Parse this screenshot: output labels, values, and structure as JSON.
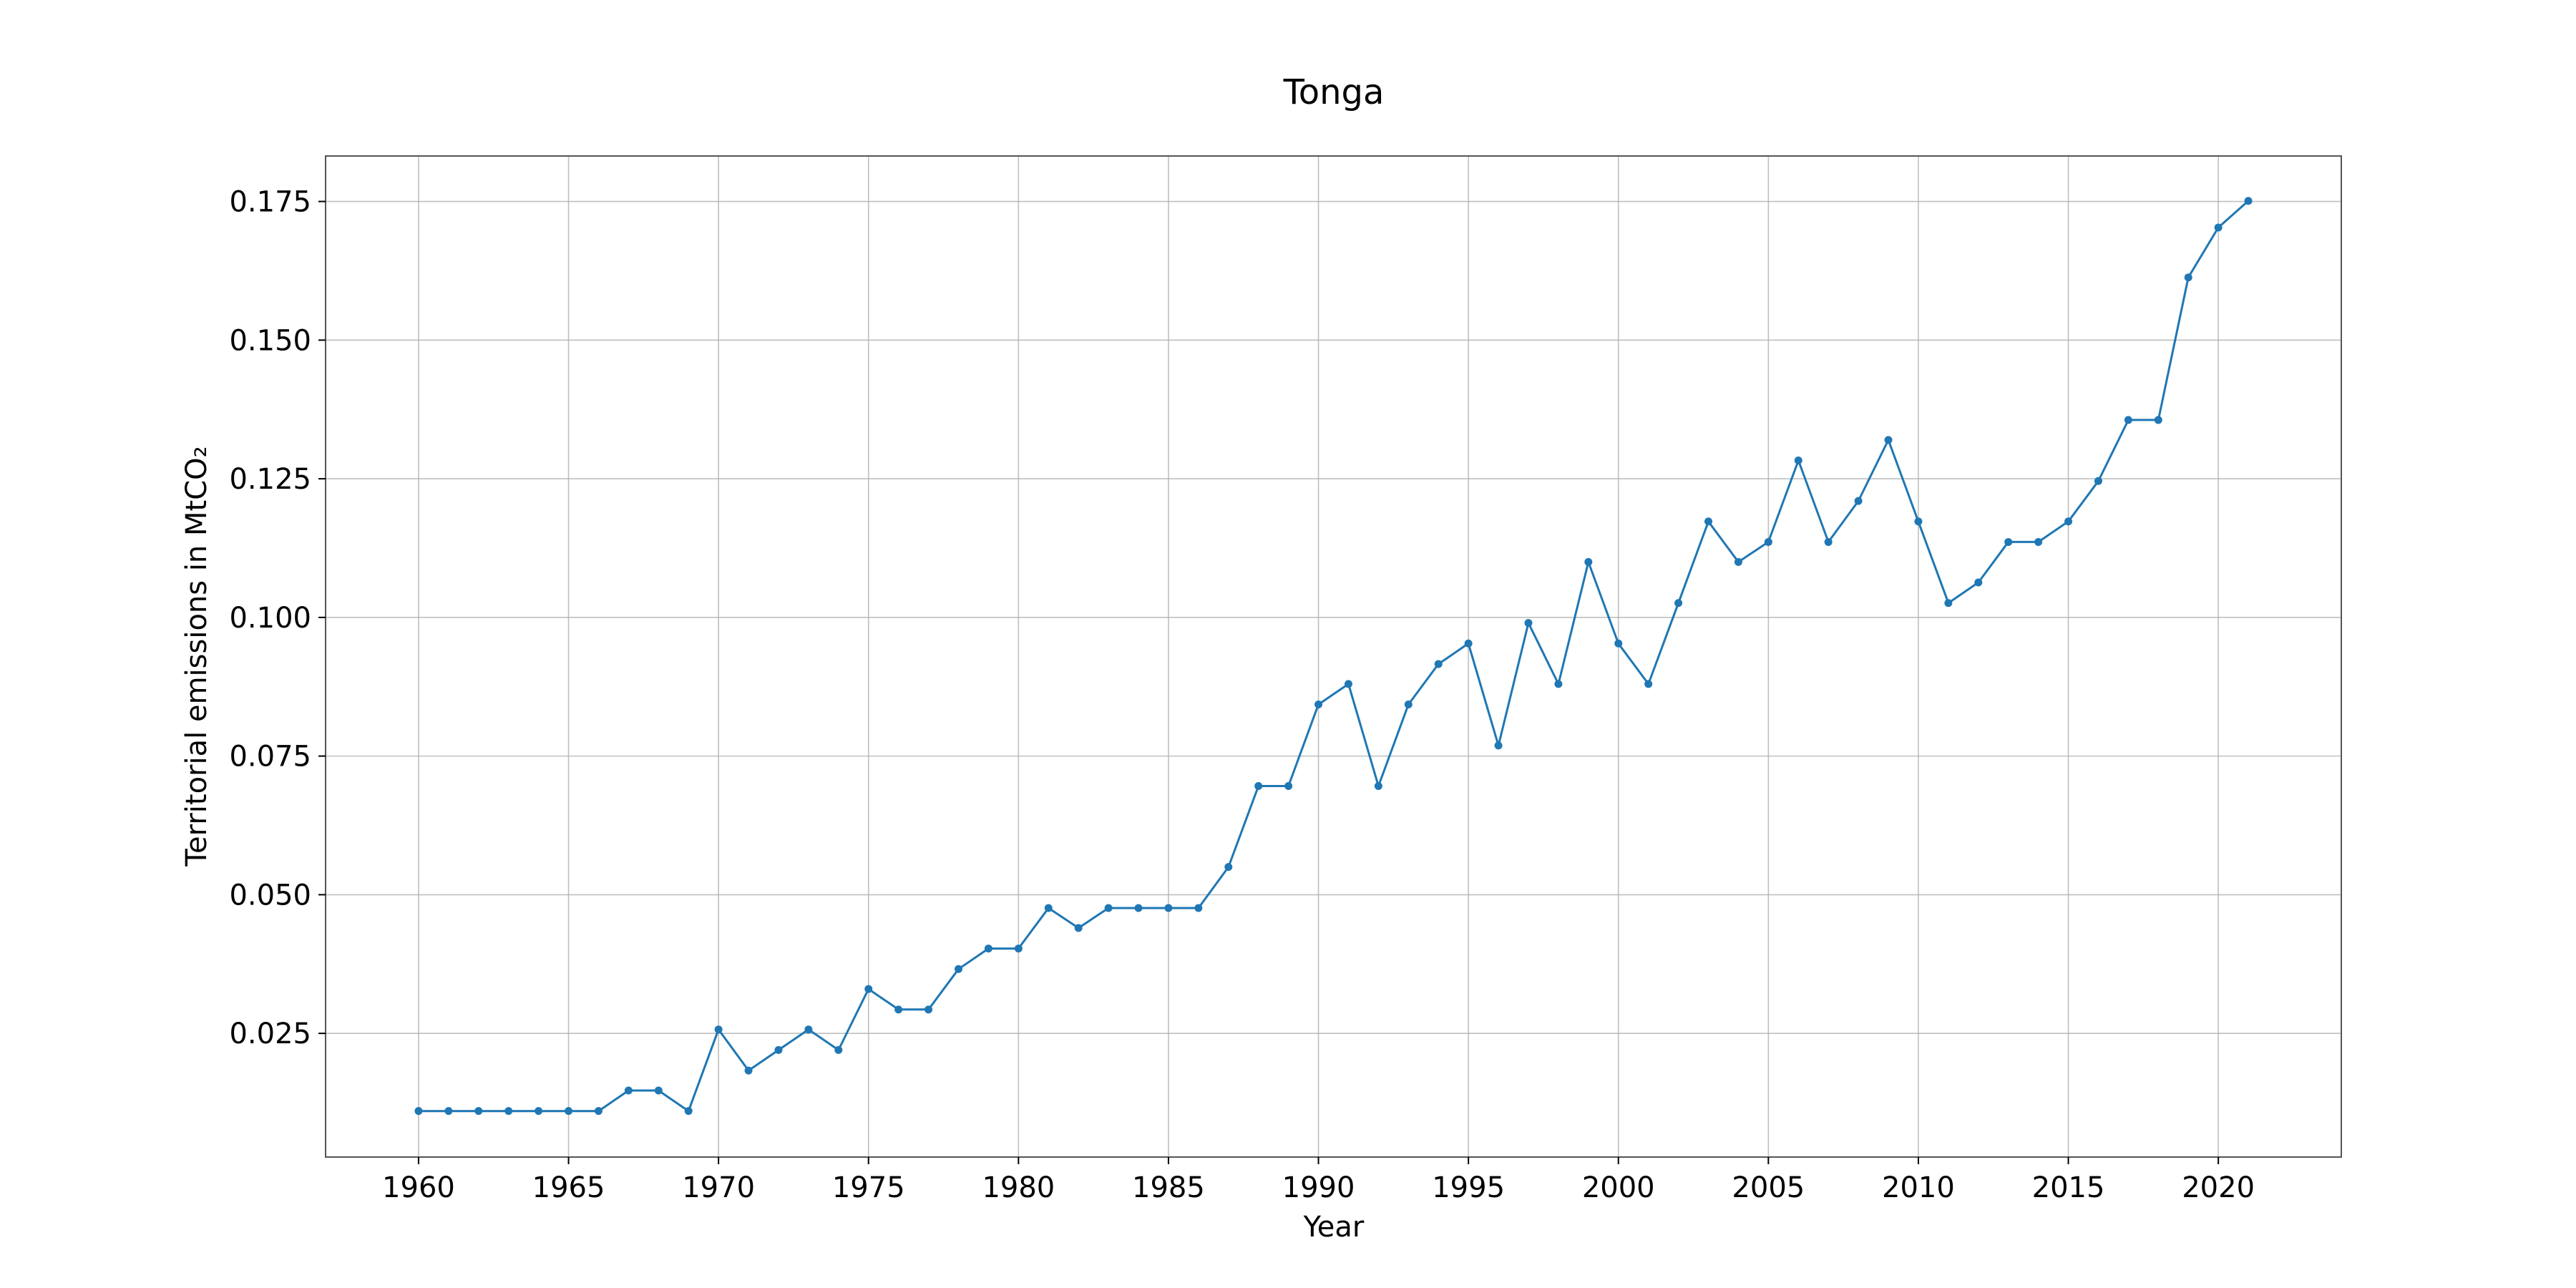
{
  "chart_data": {
    "type": "line",
    "title": "Tonga",
    "xlabel": "Year",
    "ylabel": "Territorial emissions in MtCO₂",
    "xlim": [
      1956.9,
      2024.1
    ],
    "ylim": [
      0.0027,
      0.1832
    ],
    "xticks": [
      1960,
      1965,
      1970,
      1975,
      1980,
      1985,
      1990,
      1995,
      2000,
      2005,
      2010,
      2015,
      2020
    ],
    "yticks": [
      0.025,
      0.05,
      0.075,
      0.1,
      0.125,
      0.15,
      0.175
    ],
    "ytick_labels": [
      "0.025",
      "0.050",
      "0.075",
      "0.100",
      "0.125",
      "0.150",
      "0.175"
    ],
    "grid": true,
    "color": "#1f77b4",
    "x": [
      1960,
      1961,
      1962,
      1963,
      1964,
      1965,
      1966,
      1967,
      1968,
      1969,
      1970,
      1971,
      1972,
      1973,
      1974,
      1975,
      1976,
      1977,
      1978,
      1979,
      1980,
      1981,
      1982,
      1983,
      1984,
      1985,
      1986,
      1987,
      1988,
      1989,
      1990,
      1991,
      1992,
      1993,
      1994,
      1995,
      1996,
      1997,
      1998,
      1999,
      2000,
      2001,
      2002,
      2003,
      2004,
      2005,
      2006,
      2007,
      2008,
      2009,
      2010,
      2011,
      2012,
      2013,
      2014,
      2015,
      2016,
      2017,
      2018,
      2019,
      2020,
      2021
    ],
    "y": [
      0.011,
      0.011,
      0.011,
      0.011,
      0.011,
      0.011,
      0.011,
      0.0147,
      0.0147,
      0.011,
      0.0257,
      0.0183,
      0.022,
      0.0257,
      0.022,
      0.033,
      0.0293,
      0.0293,
      0.0366,
      0.0403,
      0.0403,
      0.0476,
      0.044,
      0.0476,
      0.0476,
      0.0476,
      0.0476,
      0.055,
      0.0696,
      0.0696,
      0.0843,
      0.088,
      0.0696,
      0.0843,
      0.0916,
      0.0953,
      0.0769,
      0.099,
      0.088,
      0.11,
      0.0953,
      0.088,
      0.1026,
      0.1173,
      0.11,
      0.1136,
      0.1283,
      0.1136,
      0.121,
      0.132,
      0.1173,
      0.1026,
      0.1063,
      0.1136,
      0.1136,
      0.1173,
      0.1246,
      0.1356,
      0.1356,
      0.1613,
      0.1703,
      0.1751
    ]
  }
}
